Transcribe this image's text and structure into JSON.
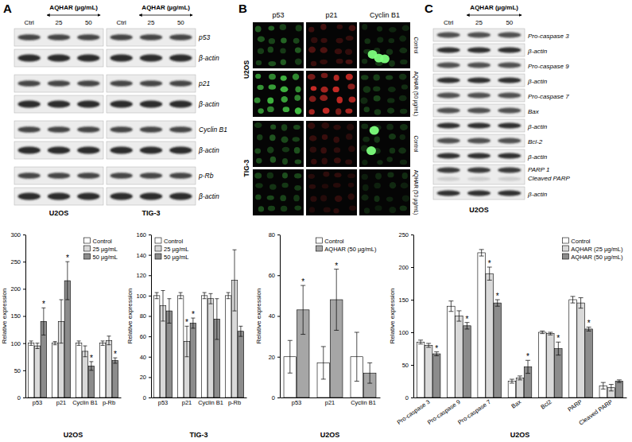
{
  "panels": {
    "A": {
      "label": "A",
      "treatment": "AQHAR (µg/mL)",
      "lanes": [
        "Ctrl",
        "25",
        "50"
      ],
      "rows": [
        "p53",
        "β-actin",
        "p21",
        "β-actin",
        "Cyclin B1",
        "β-actin",
        "p-Rb",
        "β-actin"
      ],
      "cells": [
        "U2OS",
        "TIG-3"
      ]
    },
    "B": {
      "label": "B",
      "columns": [
        "p53",
        "p21",
        "Cyclin B1"
      ],
      "cells": [
        "U2OS",
        "TIG-3"
      ],
      "conditions": [
        "Control",
        "AQHAR (50 µg/mL)"
      ]
    },
    "C": {
      "label": "C",
      "treatment": "AQHAR (µg/mL)",
      "lanes": [
        "Ctrl",
        "25",
        "50"
      ],
      "rows": [
        [
          "Pro-caspase 3"
        ],
        [
          "β-actin"
        ],
        [
          "Pro-caspase 9"
        ],
        [
          "β-actin"
        ],
        [
          "Pro-caspase 7"
        ],
        [
          "Bax"
        ],
        [
          "β-actin"
        ],
        [
          "Bcl-2"
        ],
        [
          "β-actin"
        ],
        [
          "PARP 1",
          "Cleaved PARP"
        ],
        [
          "β-actin"
        ]
      ],
      "cell": "U2OS"
    }
  },
  "chart_data": [
    {
      "type": "bar",
      "x_label": "U2OS",
      "y_label": "Relative expression",
      "categories": [
        "p53",
        "p21",
        "Cyclin B1",
        "p-Rb"
      ],
      "series": [
        {
          "name": "Control",
          "color": "#ffffff",
          "values": [
            100,
            100,
            100,
            100
          ],
          "errors": [
            4,
            3,
            4,
            4
          ]
        },
        {
          "name": "25 µg/mL",
          "color": "#d9d9d9",
          "values": [
            95,
            140,
            85,
            105
          ],
          "errors": [
            5,
            40,
            10,
            8
          ]
        },
        {
          "name": "50 µg/mL",
          "color": "#8c8c8c",
          "values": [
            140,
            215,
            58,
            68
          ],
          "errors": [
            25,
            35,
            8,
            5
          ]
        }
      ],
      "ylim": [
        0,
        300
      ],
      "yticks": [
        0,
        50,
        100,
        150,
        200,
        250,
        300
      ],
      "legend": "upper right",
      "annotations": [
        {
          "text": "*",
          "series": 2,
          "category": 0
        },
        {
          "text": "*",
          "series": 2,
          "category": 1
        },
        {
          "text": "*",
          "series": 2,
          "category": 2
        },
        {
          "text": "*",
          "series": 2,
          "category": 3
        }
      ]
    },
    {
      "type": "bar",
      "x_label": "TIG-3",
      "y_label": "Relative expression",
      "categories": [
        "p53",
        "p21",
        "Cyclin B1",
        "p-Rb"
      ],
      "series": [
        {
          "name": "Control",
          "color": "#ffffff",
          "values": [
            100,
            100,
            100,
            100
          ],
          "errors": [
            3,
            3,
            3,
            3
          ]
        },
        {
          "name": "25 µg/mL",
          "color": "#d9d9d9",
          "values": [
            90,
            55,
            97,
            115
          ],
          "errors": [
            15,
            15,
            5,
            30
          ]
        },
        {
          "name": "50 µg/mL",
          "color": "#8c8c8c",
          "values": [
            85,
            73,
            77,
            65
          ],
          "errors": [
            12,
            5,
            20,
            5
          ]
        }
      ],
      "ylim": [
        0,
        160
      ],
      "yticks": [
        0,
        20,
        40,
        60,
        80,
        100,
        120,
        140,
        160
      ],
      "legend": "upper left",
      "annotations": [
        {
          "text": "*",
          "series": 1,
          "category": 1
        },
        {
          "text": "*",
          "series": 2,
          "category": 1
        }
      ]
    },
    {
      "type": "bar",
      "x_label": "U2OS",
      "y_label": "Relative expression",
      "categories": [
        "p53",
        "p21",
        "Cyclin B1"
      ],
      "series": [
        {
          "name": "Control",
          "color": "#ffffff",
          "values": [
            20,
            17,
            20
          ],
          "errors": [
            8,
            8,
            12
          ]
        },
        {
          "name": "AQHAR (50 µg/mL)",
          "color": "#a6a6a6",
          "values": [
            43,
            48,
            12
          ],
          "errors": [
            12,
            15,
            5
          ]
        }
      ],
      "ylim": [
        0,
        80
      ],
      "yticks": [
        0,
        20,
        40,
        60,
        80
      ],
      "legend": "upper right",
      "annotations": [
        {
          "text": "*",
          "series": 1,
          "category": 0
        },
        {
          "text": "*",
          "series": 1,
          "category": 1
        }
      ]
    },
    {
      "type": "bar",
      "x_label": "U2OS",
      "y_label": "Relative expression",
      "categories": [
        "Pro-caspase 3",
        "Pro-caspase 9",
        "Pro-caspase 7",
        "Bax",
        "Bcl2",
        "PARP",
        "Cleaved PARP"
      ],
      "series": [
        {
          "name": "Control",
          "color": "#ffffff",
          "values": [
            85,
            140,
            222,
            25,
            100,
            150,
            18
          ],
          "errors": [
            3,
            8,
            5,
            3,
            2,
            5,
            5
          ]
        },
        {
          "name": "AQHAR (25 µg/mL)",
          "color": "#d9d9d9",
          "values": [
            80,
            125,
            190,
            30,
            98,
            145,
            15
          ],
          "errors": [
            3,
            8,
            10,
            3,
            2,
            8,
            5
          ]
        },
        {
          "name": "AQHAR (50 µg/mL)",
          "color": "#8c8c8c",
          "values": [
            67,
            110,
            145,
            47,
            75,
            105,
            25
          ],
          "errors": [
            3,
            5,
            5,
            10,
            10,
            3,
            2
          ]
        }
      ],
      "ylim": [
        0,
        250
      ],
      "yticks": [
        0,
        50,
        100,
        150,
        200,
        250
      ],
      "legend": "upper right",
      "annotations": [
        {
          "text": "*",
          "series": 2,
          "category": 0
        },
        {
          "text": "*",
          "series": 2,
          "category": 1
        },
        {
          "text": "*",
          "series": 1,
          "category": 2
        },
        {
          "text": "*",
          "series": 2,
          "category": 2
        },
        {
          "text": "*",
          "series": 2,
          "category": 3
        },
        {
          "text": "*",
          "series": 2,
          "category": 4
        },
        {
          "text": "*",
          "series": 2,
          "category": 5
        }
      ]
    }
  ]
}
